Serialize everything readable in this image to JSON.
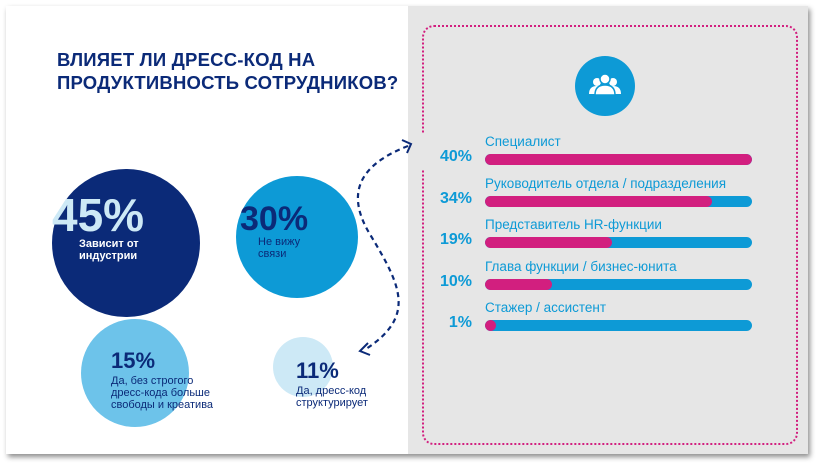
{
  "title_lines": [
    "ВЛИЯЕТ ЛИ ДРЕСС-КОД НА",
    "ПРОДУКТИВНОСТЬ СОТРУДНИКОВ?"
  ],
  "colors": {
    "navy": "#0b2a78",
    "blue": "#0d9ad6",
    "light_blue": "#6dc3ea",
    "pale_blue": "#cde9f6",
    "pink": "#d21f7f",
    "panel": "#e6e6e6"
  },
  "icon": "people-group-icon",
  "bubbles": [
    {
      "pct": "45%",
      "label_lines": [
        "Зависит от",
        "индустрии"
      ]
    },
    {
      "pct": "30%",
      "label_lines": [
        "Не вижу",
        "связи"
      ]
    },
    {
      "pct": "15%",
      "label_lines": [
        "Да, без строгого",
        "дресс-кода больше",
        "свободы и креатива"
      ]
    },
    {
      "pct": "11%",
      "label_lines": [
        "Да, дресс-код",
        "структурирует"
      ]
    }
  ],
  "chart_data": [
    {
      "type": "pie",
      "categories": [
        "Зависит от индустрии",
        "Не вижу связи",
        "Да, без строгого дресс-кода больше свободы и креатива",
        "Да, дресс-код структурирует"
      ],
      "values": [
        45,
        30,
        15,
        11
      ]
    },
    {
      "type": "bar",
      "orientation": "horizontal",
      "categories": [
        "Специалист",
        "Руководитель отдела / подразделения",
        "Представитель HR-функции",
        "Глава функции / бизнес-юнита",
        "Стажер / ассистент"
      ],
      "values": [
        40,
        34,
        19,
        10,
        1
      ],
      "value_labels": [
        "40%",
        "34%",
        "19%",
        "10%",
        "1%"
      ],
      "xlim": [
        0,
        40
      ]
    }
  ]
}
